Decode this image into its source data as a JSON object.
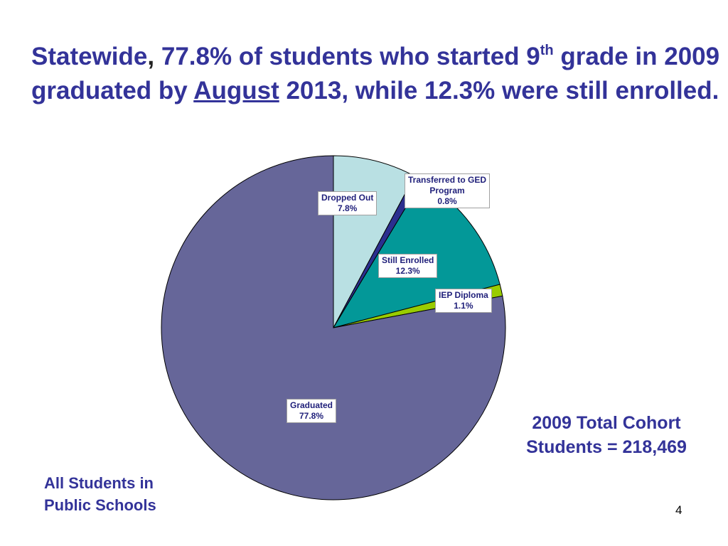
{
  "title": {
    "part1": "Statewide",
    "comma": ",",
    "part2": " 77.8% of students who started 9",
    "sup": "th",
    "part3": " grade in 2009 graduated by ",
    "underlined": "August",
    "part4": " 2013, while 12.3% were still enrolled."
  },
  "chart_data": {
    "type": "pie",
    "title": "",
    "unit": "%",
    "slices": [
      {
        "name": "Dropped Out",
        "value": 7.8,
        "label_value": "7.8%",
        "color": "#b9e0e3"
      },
      {
        "name": "Transferred to GED Program",
        "name_line1": "Transferred to GED",
        "name_line2": "Program",
        "value": 0.8,
        "label_value": "0.8%",
        "color": "#2b2f8f"
      },
      {
        "name": "Still Enrolled",
        "value": 12.3,
        "label_value": "12.3%",
        "color": "#039898"
      },
      {
        "name": "IEP Diploma",
        "value": 1.1,
        "label_value": "1.1%",
        "color": "#99cc00"
      },
      {
        "name": "Graduated",
        "value": 77.8,
        "label_value": "77.8%",
        "color": "#666699"
      }
    ]
  },
  "cohort": {
    "line1": "2009 Total Cohort",
    "line2": "Students = 218,469"
  },
  "footnote": {
    "line1": "All Students in",
    "line2": "Public Schools"
  },
  "page_number": "4"
}
